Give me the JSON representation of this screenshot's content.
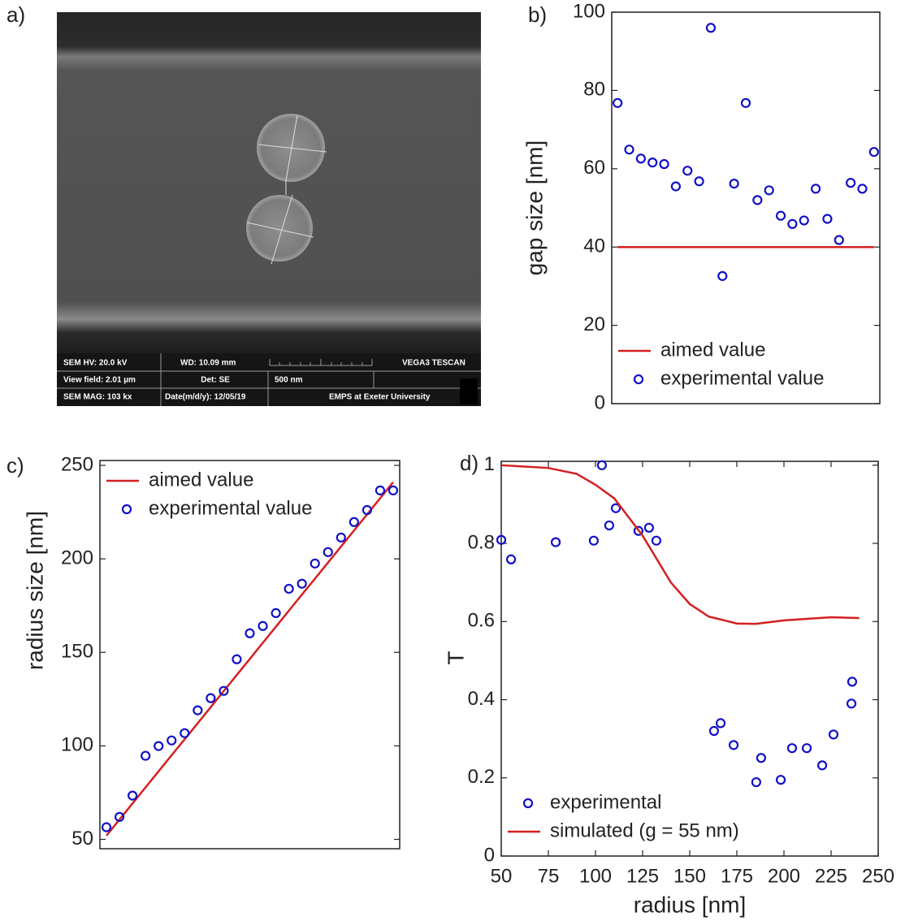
{
  "image_panel": {
    "label": "a)",
    "info": [
      "SEM HV: 20.0 kV",
      "WD: 10.09 mm",
      "VEGA3 TESCAN",
      "View field: 2.01 µm",
      "Det: SE",
      "500 nm",
      "SEM MAG: 103 kx",
      "Date(m/d/y): 12/05/19",
      "EMPS at Exeter University"
    ]
  },
  "chart_data": [
    {
      "type": "scatter",
      "label": "b)",
      "y_label": "gap size  [nm]",
      "legend": "lower left",
      "categories": [
        null,
        null,
        null,
        null,
        null,
        null,
        null,
        null,
        null,
        null,
        null,
        null,
        null,
        null,
        null,
        null,
        null,
        null,
        null,
        null,
        null,
        null,
        null
      ],
      "ylim": [
        0,
        100
      ],
      "yticks": [
        0,
        20,
        40,
        60,
        80,
        100
      ],
      "series": [
        {
          "name": "aimed value",
          "style": "line",
          "color": "#d42020",
          "values": [
            40,
            40,
            40,
            40,
            40,
            40,
            40,
            40,
            40,
            40,
            40,
            40,
            40,
            40,
            40,
            40,
            40,
            40,
            40,
            40,
            40,
            40,
            40
          ]
        },
        {
          "name": "experimental value",
          "style": "marker",
          "color": "#1010c8",
          "values": [
            76.8,
            64.9,
            62.6,
            61.6,
            61.2,
            55.5,
            59.5,
            56.8,
            96,
            32.6,
            56.2,
            76.8,
            52,
            54.5,
            48,
            45.9,
            46.8,
            54.9,
            47.2,
            41.8,
            56.4,
            54.9,
            64.3
          ]
        }
      ]
    },
    {
      "type": "scatter",
      "label": "c)",
      "y_label": "radius size [nm]",
      "legend": "upper left",
      "categories": [
        null,
        null,
        null,
        null,
        null,
        null,
        null,
        null,
        null,
        null,
        null,
        null,
        null,
        null,
        null,
        null,
        null,
        null,
        null,
        null,
        null,
        null,
        null
      ],
      "ylim": [
        45,
        252.6
      ],
      "yticks": [
        50,
        100,
        150,
        200,
        250
      ],
      "series": [
        {
          "name": "aimed value",
          "style": "line",
          "color": "#d42020",
          "values": [
            52,
            60.6,
            69.2,
            77.8,
            86.4,
            95,
            103.5,
            112.1,
            120.7,
            129.3,
            137.9,
            146.5,
            155.1,
            163.7,
            172.3,
            180.9,
            189.4,
            198,
            206.6,
            215.2,
            223.8,
            232.4,
            241
          ]
        },
        {
          "name": "experimental value",
          "style": "marker",
          "color": "#1010c8",
          "values": [
            56.5,
            62,
            73.4,
            94.7,
            99.9,
            102.9,
            106.8,
            119,
            125.5,
            129.4,
            146.3,
            160.2,
            164.1,
            171,
            184,
            186.7,
            197.5,
            203.6,
            211.4,
            219.7,
            226.1,
            236.6,
            236.6
          ]
        }
      ]
    },
    {
      "type": "scatter",
      "label": "d)",
      "y_label": "T",
      "x_label": "radius [nm]",
      "legend": "lower left",
      "xlim": [
        50,
        250
      ],
      "xticks": [
        50,
        75,
        100,
        125,
        150,
        175,
        200,
        225,
        250
      ],
      "ylim": [
        0,
        1.01
      ],
      "yticks": [
        0,
        0.2,
        0.4,
        0.6,
        0.8,
        1
      ],
      "series": [
        {
          "name": "experimental",
          "style": "marker",
          "color": "#1010c8",
          "x": [
            50,
            55.2,
            78.9,
            99.1,
            103.4,
            107.3,
            110.8,
            122.8,
            128.4,
            132.3,
            162.9,
            166.4,
            173.3,
            185.3,
            187.9,
            198.3,
            204.3,
            212.1,
            220.3,
            226.3,
            235.8,
            236.2
          ],
          "values": [
            0.809,
            0.759,
            0.803,
            0.807,
            1.0,
            0.846,
            0.89,
            0.832,
            0.84,
            0.807,
            0.32,
            0.34,
            0.284,
            0.189,
            0.251,
            0.195,
            0.276,
            0.276,
            0.232,
            0.311,
            0.39,
            0.446
          ]
        },
        {
          "name": "simulated (g = 55 nm)",
          "style": "line",
          "color": "#d42020",
          "x": [
            50,
            75,
            90,
            100,
            110,
            125,
            140,
            150,
            160,
            175,
            185,
            200,
            225,
            240
          ],
          "values": [
            1.0,
            0.993,
            0.978,
            0.95,
            0.915,
            0.82,
            0.7,
            0.645,
            0.613,
            0.595,
            0.594,
            0.603,
            0.611,
            0.609
          ]
        }
      ]
    }
  ]
}
